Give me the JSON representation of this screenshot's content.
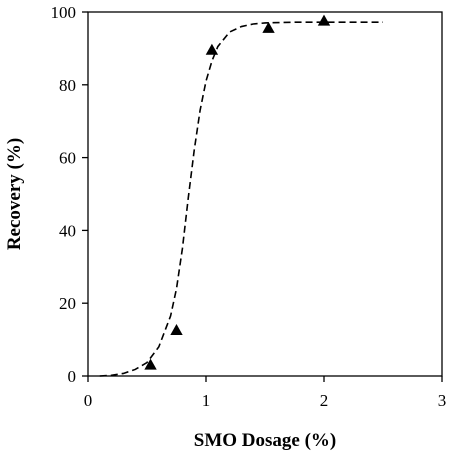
{
  "chart_data": {
    "type": "scatter",
    "xlabel": "SMO Dosage (%)",
    "ylabel": "Recovery (%)",
    "xlim": [
      0,
      3
    ],
    "ylim": [
      0,
      100
    ],
    "x_ticks": [
      0,
      1,
      2,
      3
    ],
    "y_ticks": [
      0,
      20,
      40,
      60,
      80,
      100
    ],
    "x_tick_labels": [
      "0",
      "1",
      "2",
      "3"
    ],
    "y_tick_labels": [
      "0",
      "20",
      "40",
      "60",
      "80",
      "100"
    ],
    "grid": false,
    "marker": "triangle",
    "marker_color": "#000000",
    "fit_line_style": "dashed",
    "series": [
      {
        "x": [
          0.53,
          0.75,
          1.05,
          1.53,
          2.0
        ],
        "y": [
          3,
          12.5,
          89.5,
          95.5,
          97.5
        ]
      }
    ],
    "fit_curve": {
      "x": [
        0.1,
        0.2,
        0.3,
        0.4,
        0.5,
        0.6,
        0.7,
        0.75,
        0.8,
        0.85,
        0.9,
        0.95,
        1.0,
        1.05,
        1.1,
        1.2,
        1.3,
        1.4,
        1.5,
        1.75,
        2.0,
        2.25,
        2.5
      ],
      "y": [
        0,
        0.2,
        0.7,
        1.8,
        3.7,
        8,
        16.5,
        24,
        35,
        49,
        62,
        73,
        81,
        86.5,
        90.5,
        94.5,
        96,
        96.7,
        97,
        97.2,
        97.2,
        97.2,
        97.2
      ]
    }
  }
}
